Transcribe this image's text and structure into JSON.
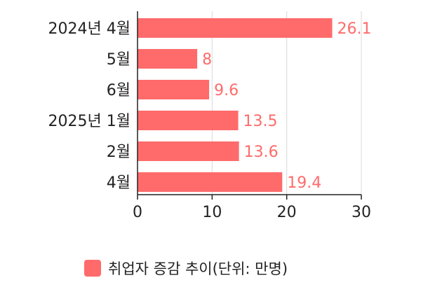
{
  "chart_data": {
    "type": "bar",
    "orientation": "horizontal",
    "categories": [
      "2024년 4월",
      "5월",
      "6월",
      "2025년 1월",
      "2월",
      "4월"
    ],
    "series": [
      {
        "name": "취업자 증감 추이(단위: 만명)",
        "values": [
          26.1,
          8,
          9.6,
          13.5,
          13.6,
          19.4
        ]
      }
    ],
    "data_labels": [
      "26.1",
      "8",
      "9.6",
      "13.5",
      "13.6",
      "19.4"
    ],
    "xlim": [
      0,
      30
    ],
    "xticks": [
      0,
      10,
      20,
      30
    ],
    "grid": "vertical",
    "legend_position": "bottom",
    "bar_color": "#FF6B6B",
    "label_color": "#FF6B6B",
    "axis_color": "#222222",
    "grid_color": "#D9D9D9"
  },
  "legend": {
    "label": "취업자 증감 추이(단위: 만명)"
  }
}
